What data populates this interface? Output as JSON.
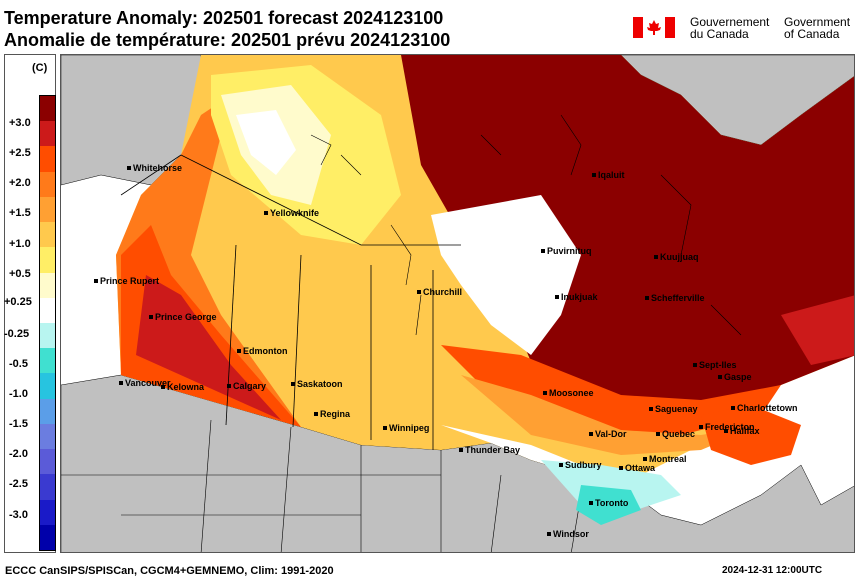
{
  "header": {
    "title_line1": "Temperature Anomaly: 202501 forecast 2024123100",
    "title_line2": "Anomalie de température: 202501 prévu 2024123100",
    "gov_fr_line1": "Gouvernement",
    "gov_fr_line2": "du Canada",
    "gov_en_line1": "Government",
    "gov_en_line2": "of Canada",
    "flag_icon": "canada-flag-icon"
  },
  "legend": {
    "unit": "(C)",
    "ticks": [
      "+3.0",
      "+2.5",
      "+2.0",
      "+1.5",
      "+1.0",
      "+0.5",
      "+0.25",
      "-0.25",
      "-0.5",
      "-1.0",
      "-1.5",
      "-2.0",
      "-2.5",
      "-3.0"
    ],
    "colors": [
      "#8b0000",
      "#cc1a1a",
      "#ff4d00",
      "#ff7a1a",
      "#ffa033",
      "#ffc94d",
      "#ffee66",
      "#fffbcc",
      "#ffffff",
      "#b8f5f0",
      "#40e0d0",
      "#27c4e0",
      "#5b9ee8",
      "#6b7de0",
      "#5b5bd8",
      "#3a3ad0",
      "#1a1ac8",
      "#0000aa"
    ]
  },
  "map": {
    "cities": [
      "Whitehorse",
      "Yellowknife",
      "Prince Rupert",
      "Prince George",
      "Edmonton",
      "Vancouver",
      "Kelowna",
      "Calgary",
      "Saskatoon",
      "Regina",
      "Winnipeg",
      "Churchill",
      "Thunder Bay",
      "Moosonee",
      "Sudbury",
      "Toronto",
      "Windsor",
      "Ottawa",
      "Montreal",
      "Val-Dor",
      "Quebec",
      "Saguenay",
      "Fredericton",
      "Halifax",
      "Charlottetown",
      "Gaspe",
      "Sept-Iles",
      "Schefferville",
      "Kuujjuaq",
      "Puvirnituq",
      "Inukjuak",
      "Iqaluit"
    ],
    "land_colors": {
      "us_gray": "#c0c0c0",
      "canada_ocean": "#ffffff"
    }
  },
  "footer": {
    "left": "ECCC CanSIPS/SPISCan, CGCM4+GEMNEMO, Clim: 1991-2020",
    "right": "2024-12-31 12:00UTC"
  }
}
